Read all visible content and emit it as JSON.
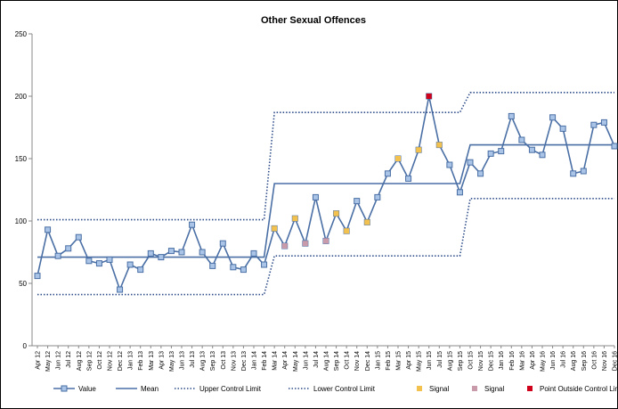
{
  "chart_data": {
    "type": "line",
    "title": "Other Sexual Offences",
    "categories": [
      "Apr 12",
      "May 12",
      "Jun 12",
      "Jul 12",
      "Aug 12",
      "Sep 12",
      "Oct 12",
      "Nov 12",
      "Dec 12",
      "Jan 13",
      "Feb 13",
      "Mar 13",
      "Apr 13",
      "May 13",
      "Jun 13",
      "Jul 13",
      "Aug 13",
      "Sep 13",
      "Oct 13",
      "Nov 13",
      "Dec 13",
      "Jan 14",
      "Feb 14",
      "Mar 14",
      "Apr 14",
      "May 14",
      "Jun 14",
      "Jul 14",
      "Aug 14",
      "Sep 14",
      "Oct 14",
      "Nov 14",
      "Dec 14",
      "Jan 15",
      "Feb 15",
      "Mar 15",
      "Apr 15",
      "May 15",
      "Jun 15",
      "Jul 15",
      "Aug 15",
      "Sep 15",
      "Oct 15",
      "Nov 15",
      "Dec 15",
      "Jan 16",
      "Feb 16",
      "Mar 16",
      "Apr 16",
      "May 16",
      "Jun 16",
      "Jul 16",
      "Aug 16",
      "Sep 16",
      "Oct 16",
      "Nov 16",
      "Dec 16"
    ],
    "series": [
      {
        "name": "Value",
        "color": "#4a6fa5",
        "line": "solid",
        "marker": "square",
        "marker_fill": "#a9c4e6",
        "values": [
          56,
          93,
          72,
          78,
          87,
          68,
          66,
          69,
          45,
          65,
          61,
          74,
          71,
          76,
          75,
          97,
          75,
          64,
          82,
          63,
          61,
          74,
          65,
          94,
          80,
          102,
          82,
          119,
          84,
          106,
          92,
          116,
          99,
          119,
          138,
          150,
          134,
          157,
          200,
          161,
          145,
          123,
          147,
          138,
          154,
          156,
          184,
          165,
          157,
          153,
          183,
          174,
          138,
          140,
          177,
          179,
          160
        ]
      },
      {
        "name": "Mean",
        "color": "#4a6fa5",
        "line": "solid",
        "marker": "none",
        "values": [
          71,
          71,
          71,
          71,
          71,
          71,
          71,
          71,
          71,
          71,
          71,
          71,
          71,
          71,
          71,
          71,
          71,
          71,
          71,
          71,
          71,
          71,
          71,
          130,
          130,
          130,
          130,
          130,
          130,
          130,
          130,
          130,
          130,
          130,
          130,
          130,
          130,
          130,
          130,
          130,
          130,
          130,
          161,
          161,
          161,
          161,
          161,
          161,
          161,
          161,
          161,
          161,
          161,
          161,
          161,
          161,
          161
        ]
      },
      {
        "name": "Upper Control Limit",
        "color": "#2e4d8a",
        "line": "dotted",
        "marker": "none",
        "values": [
          101,
          101,
          101,
          101,
          101,
          101,
          101,
          101,
          101,
          101,
          101,
          101,
          101,
          101,
          101,
          101,
          101,
          101,
          101,
          101,
          101,
          101,
          101,
          187,
          187,
          187,
          187,
          187,
          187,
          187,
          187,
          187,
          187,
          187,
          187,
          187,
          187,
          187,
          187,
          187,
          187,
          187,
          203,
          203,
          203,
          203,
          203,
          203,
          203,
          203,
          203,
          203,
          203,
          203,
          203,
          203,
          203
        ]
      },
      {
        "name": "Lower Control Limit",
        "color": "#2e4d8a",
        "line": "dotted",
        "marker": "none",
        "values": [
          41,
          41,
          41,
          41,
          41,
          41,
          41,
          41,
          41,
          41,
          41,
          41,
          41,
          41,
          41,
          41,
          41,
          41,
          41,
          41,
          41,
          41,
          41,
          72,
          72,
          72,
          72,
          72,
          72,
          72,
          72,
          72,
          72,
          72,
          72,
          72,
          72,
          72,
          72,
          72,
          72,
          72,
          118,
          118,
          118,
          118,
          118,
          118,
          118,
          118,
          118,
          118,
          118,
          118,
          118,
          118,
          118
        ]
      },
      {
        "name": "Signal",
        "color": "#f2c14e",
        "line": "none",
        "marker": "square",
        "values": [
          null,
          null,
          null,
          null,
          null,
          null,
          null,
          null,
          null,
          null,
          null,
          null,
          null,
          null,
          null,
          null,
          null,
          null,
          null,
          null,
          null,
          null,
          null,
          94,
          null,
          102,
          null,
          null,
          null,
          106,
          92,
          null,
          99,
          null,
          null,
          150,
          null,
          157,
          null,
          161,
          null,
          null,
          null,
          null,
          null,
          null,
          null,
          null,
          null,
          null,
          null,
          null,
          null,
          null,
          null,
          null,
          null
        ]
      },
      {
        "name": "Signal",
        "color": "#c99aaa",
        "line": "none",
        "marker": "square",
        "values": [
          null,
          null,
          null,
          null,
          null,
          null,
          null,
          null,
          null,
          null,
          null,
          null,
          null,
          null,
          null,
          null,
          null,
          null,
          null,
          null,
          null,
          null,
          null,
          null,
          80,
          null,
          82,
          null,
          84,
          null,
          null,
          null,
          null,
          null,
          null,
          null,
          null,
          null,
          null,
          null,
          null,
          null,
          null,
          null,
          null,
          null,
          null,
          null,
          null,
          null,
          null,
          null,
          null,
          null,
          null,
          null,
          null
        ]
      },
      {
        "name": "Point Outside Control Limit",
        "color": "#d0021b",
        "line": "none",
        "marker": "square",
        "values": [
          null,
          null,
          null,
          null,
          null,
          null,
          null,
          null,
          null,
          null,
          null,
          null,
          null,
          null,
          null,
          null,
          null,
          null,
          null,
          null,
          null,
          null,
          null,
          null,
          null,
          null,
          null,
          null,
          null,
          null,
          null,
          null,
          null,
          null,
          null,
          null,
          null,
          null,
          200,
          null,
          null,
          null,
          null,
          null,
          null,
          null,
          null,
          null,
          null,
          null,
          null,
          null,
          null,
          null,
          null,
          null,
          null
        ]
      }
    ],
    "ylim": [
      0,
      250
    ],
    "yticks": [
      0,
      50,
      100,
      150,
      200,
      250
    ],
    "grid": false,
    "legend": "bottom"
  }
}
